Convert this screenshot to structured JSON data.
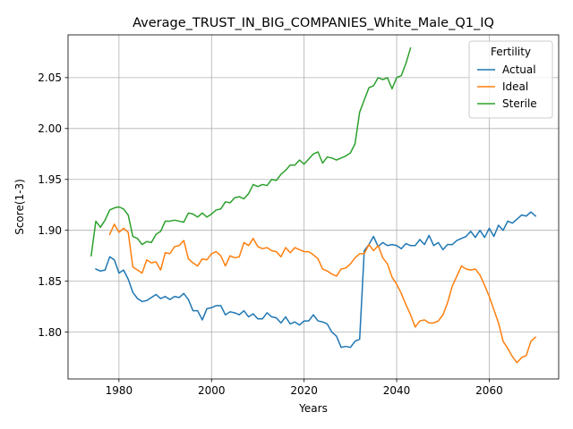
{
  "chart_data": {
    "type": "line",
    "title": "Average_TRUST_IN_BIG_COMPANIES_White_Male_Q1_IQ",
    "xlabel": "Years",
    "ylabel": "Score(1-3)",
    "xlim": [
      1969,
      2075
    ],
    "ylim": [
      1.754,
      2.092
    ],
    "xticks": [
      1980,
      2000,
      2020,
      2040,
      2060
    ],
    "yticks": [
      1.8,
      1.85,
      1.9,
      1.95,
      2.0,
      2.05
    ],
    "xtick_labels": [
      "1980",
      "2000",
      "2020",
      "2040",
      "2060"
    ],
    "ytick_labels": [
      "1.80",
      "1.85",
      "1.90",
      "1.95",
      "2.00",
      "2.05"
    ],
    "grid": true,
    "legend": {
      "title": "Fertility",
      "placement": "upper right"
    },
    "series": [
      {
        "name": "Actual",
        "color": "#1f77b4",
        "x": [
          1975,
          1976,
          1977,
          1978,
          1979,
          1980,
          1981,
          1982,
          1983,
          1984,
          1985,
          1986,
          1987,
          1988,
          1989,
          1990,
          1991,
          1992,
          1993,
          1994,
          1995,
          1996,
          1997,
          1998,
          1999,
          2000,
          2001,
          2002,
          2003,
          2004,
          2005,
          2006,
          2007,
          2008,
          2009,
          2010,
          2011,
          2012,
          2013,
          2014,
          2015,
          2016,
          2017,
          2018,
          2019,
          2020,
          2021,
          2022,
          2023,
          2024,
          2025,
          2026,
          2027,
          2028,
          2029,
          2030,
          2031,
          2032,
          2033,
          2034,
          2035,
          2036,
          2037,
          2038,
          2039,
          2040,
          2041,
          2042,
          2043,
          2044,
          2045,
          2046,
          2047,
          2048,
          2049,
          2050,
          2051,
          2052,
          2053,
          2054,
          2055,
          2056,
          2057,
          2058,
          2059,
          2060,
          2061,
          2062,
          2063,
          2064,
          2065,
          2066,
          2067,
          2068,
          2069,
          2070
        ],
        "values": [
          1.862,
          1.86,
          1.861,
          1.874,
          1.871,
          1.858,
          1.861,
          1.852,
          1.839,
          1.833,
          1.83,
          1.831,
          1.834,
          1.837,
          1.833,
          1.835,
          1.832,
          1.835,
          1.834,
          1.838,
          1.832,
          1.821,
          1.821,
          1.812,
          1.823,
          1.824,
          1.826,
          1.826,
          1.817,
          1.82,
          1.819,
          1.817,
          1.821,
          1.815,
          1.818,
          1.813,
          1.813,
          1.819,
          1.815,
          1.814,
          1.809,
          1.815,
          1.808,
          1.81,
          1.807,
          1.811,
          1.811,
          1.817,
          1.811,
          1.81,
          1.808,
          1.8,
          1.796,
          1.785,
          1.786,
          1.785,
          1.791,
          1.793,
          1.88,
          1.886,
          1.894,
          1.884,
          1.888,
          1.885,
          1.886,
          1.885,
          1.882,
          1.887,
          1.885,
          1.885,
          1.891,
          1.886,
          1.895,
          1.885,
          1.888,
          1.881,
          1.886,
          1.886,
          1.89,
          1.892,
          1.894,
          1.899,
          1.893,
          1.9,
          1.893,
          1.902,
          1.894,
          1.905,
          1.9,
          1.909,
          1.907,
          1.911,
          1.915,
          1.914,
          1.918,
          1.914
        ]
      },
      {
        "name": "Ideal",
        "color": "#ff7f0e",
        "x": [
          1978,
          1979,
          1980,
          1981,
          1982,
          1983,
          1984,
          1985,
          1986,
          1987,
          1988,
          1989,
          1990,
          1991,
          1992,
          1993,
          1994,
          1995,
          1996,
          1997,
          1998,
          1999,
          2000,
          2001,
          2002,
          2003,
          2004,
          2005,
          2006,
          2007,
          2008,
          2009,
          2010,
          2011,
          2012,
          2013,
          2014,
          2015,
          2016,
          2017,
          2018,
          2019,
          2020,
          2021,
          2022,
          2023,
          2024,
          2025,
          2026,
          2027,
          2028,
          2029,
          2030,
          2031,
          2032,
          2033,
          2034,
          2035,
          2036,
          2037,
          2038,
          2039,
          2040,
          2041,
          2042,
          2043,
          2044,
          2045,
          2046,
          2047,
          2048,
          2049,
          2050,
          2051,
          2052,
          2053,
          2054,
          2055,
          2056,
          2057,
          2058,
          2059,
          2060,
          2061,
          2062,
          2063,
          2064,
          2065,
          2066,
          2067,
          2068,
          2069,
          2070
        ],
        "values": [
          1.896,
          1.906,
          1.898,
          1.902,
          1.898,
          1.864,
          1.861,
          1.858,
          1.871,
          1.868,
          1.869,
          1.861,
          1.878,
          1.877,
          1.884,
          1.885,
          1.89,
          1.872,
          1.868,
          1.865,
          1.872,
          1.871,
          1.877,
          1.879,
          1.875,
          1.865,
          1.875,
          1.873,
          1.874,
          1.888,
          1.885,
          1.892,
          1.884,
          1.882,
          1.883,
          1.88,
          1.879,
          1.874,
          1.883,
          1.878,
          1.883,
          1.881,
          1.879,
          1.879,
          1.876,
          1.872,
          1.862,
          1.86,
          1.857,
          1.855,
          1.862,
          1.863,
          1.867,
          1.873,
          1.877,
          1.877,
          1.886,
          1.88,
          1.885,
          1.873,
          1.867,
          1.854,
          1.847,
          1.838,
          1.827,
          1.817,
          1.805,
          1.811,
          1.812,
          1.809,
          1.809,
          1.811,
          1.817,
          1.829,
          1.845,
          1.855,
          1.865,
          1.862,
          1.861,
          1.862,
          1.856,
          1.846,
          1.835,
          1.822,
          1.809,
          1.791,
          1.784,
          1.776,
          1.77,
          1.775,
          1.777,
          1.791,
          1.795
        ]
      },
      {
        "name": "Sterile",
        "color": "#2ca02c",
        "x": [
          1974,
          1975,
          1976,
          1977,
          1978,
          1979,
          1980,
          1981,
          1982,
          1983,
          1984,
          1985,
          1986,
          1987,
          1988,
          1989,
          1990,
          1991,
          1992,
          1993,
          1994,
          1995,
          1996,
          1997,
          1998,
          1999,
          2000,
          2001,
          2002,
          2003,
          2004,
          2005,
          2006,
          2007,
          2008,
          2009,
          2010,
          2011,
          2012,
          2013,
          2014,
          2015,
          2016,
          2017,
          2018,
          2019,
          2020,
          2021,
          2022,
          2023,
          2024,
          2025,
          2026,
          2027,
          2028,
          2029,
          2030,
          2031,
          2032,
          2033,
          2034,
          2035,
          2036,
          2037,
          2038,
          2039,
          2040,
          2041,
          2042,
          2043
        ],
        "values": [
          1.875,
          1.909,
          1.903,
          1.91,
          1.92,
          1.922,
          1.923,
          1.921,
          1.915,
          1.894,
          1.892,
          1.886,
          1.889,
          1.888,
          1.896,
          1.899,
          1.909,
          1.909,
          1.91,
          1.909,
          1.908,
          1.917,
          1.916,
          1.913,
          1.917,
          1.913,
          1.916,
          1.92,
          1.921,
          1.928,
          1.927,
          1.932,
          1.933,
          1.931,
          1.936,
          1.945,
          1.943,
          1.945,
          1.944,
          1.95,
          1.949,
          1.955,
          1.959,
          1.964,
          1.964,
          1.969,
          1.965,
          1.97,
          1.975,
          1.977,
          1.966,
          1.972,
          1.971,
          1.969,
          1.971,
          1.973,
          1.976,
          1.985,
          2.016,
          2.028,
          2.04,
          2.042,
          2.05,
          2.048,
          2.05,
          2.039,
          2.05,
          2.052,
          2.064,
          2.079
        ]
      }
    ]
  }
}
